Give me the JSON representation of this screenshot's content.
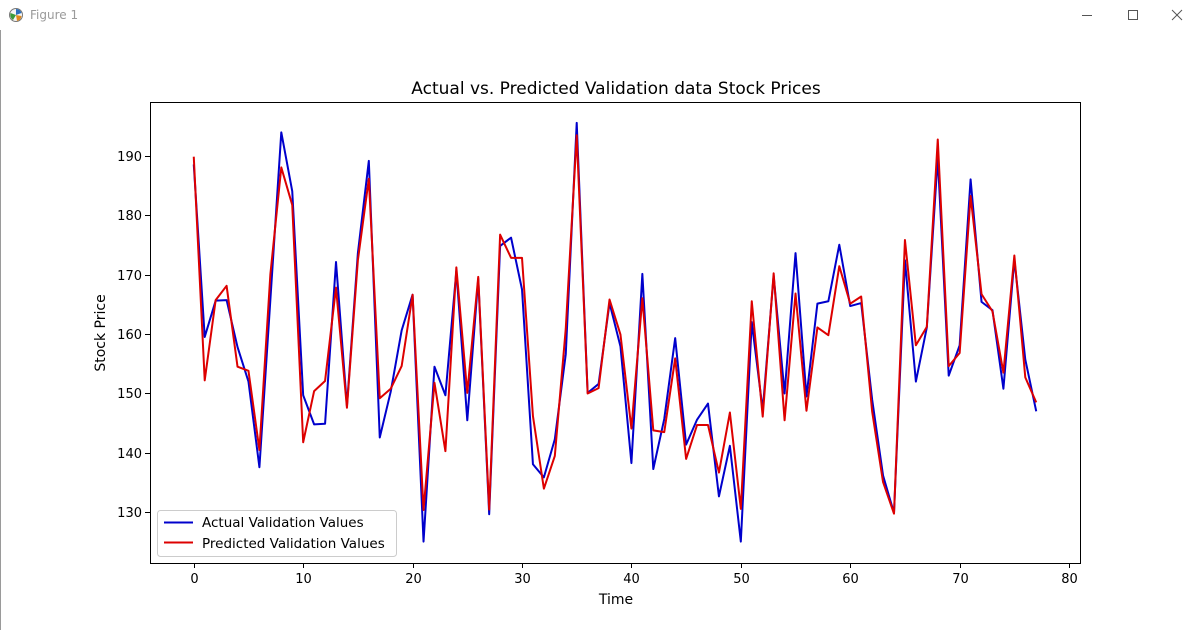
{
  "window": {
    "title": "Figure 1",
    "app_icon": "matplotlib-figure-icon",
    "minimize_icon": "minimize-icon",
    "maximize_icon": "maximize-icon",
    "close_icon": "close-icon"
  },
  "colors": {
    "actual": "#0000cc",
    "predicted": "#dd0000"
  },
  "chart_data": {
    "type": "line",
    "title": "Actual vs. Predicted Validation data Stock Prices",
    "xlabel": "Time",
    "ylabel": "Stock Price",
    "xlim": [
      -4,
      81
    ],
    "ylim": [
      121.5,
      199
    ],
    "xticks": [
      0,
      10,
      20,
      30,
      40,
      50,
      60,
      70,
      80
    ],
    "yticks": [
      130,
      140,
      150,
      160,
      170,
      180,
      190
    ],
    "grid": false,
    "legend_position": "lower-left",
    "x": [
      0,
      1,
      2,
      3,
      4,
      5,
      6,
      7,
      8,
      9,
      10,
      11,
      12,
      13,
      14,
      15,
      16,
      17,
      18,
      19,
      20,
      21,
      22,
      23,
      24,
      25,
      26,
      27,
      28,
      29,
      30,
      31,
      32,
      33,
      34,
      35,
      36,
      37,
      38,
      39,
      40,
      41,
      42,
      43,
      44,
      45,
      46,
      47,
      48,
      49,
      50,
      51,
      52,
      53,
      54,
      55,
      56,
      57,
      58,
      59,
      60,
      61,
      62,
      63,
      64,
      65,
      66,
      67,
      68,
      69,
      70,
      71,
      72,
      73,
      74,
      75,
      76,
      77
    ],
    "series": [
      {
        "name": "Actual Validation Values",
        "values": [
          188.5,
          159.5,
          165.6,
          165.7,
          157.8,
          152.0,
          137.6,
          165.7,
          193.9,
          184.0,
          149.7,
          144.8,
          144.9,
          172.1,
          147.9,
          173.6,
          189.1,
          142.6,
          150.3,
          160.6,
          166.6,
          125.1,
          154.5,
          149.7,
          170.6,
          145.5,
          169.3,
          129.7,
          174.8,
          176.2,
          167.5,
          138.1,
          135.9,
          142.3,
          156.6,
          195.5,
          150.1,
          151.6,
          165.2,
          157.9,
          138.3,
          170.1,
          137.3,
          145.7,
          159.3,
          141.4,
          145.6,
          148.3,
          132.7,
          141.2,
          125.1,
          162.0,
          147.2,
          169.8,
          150.0,
          173.6,
          149.5,
          165.1,
          165.5,
          175.0,
          164.7,
          165.2,
          149.0,
          136.2,
          129.9,
          172.4,
          152.0,
          161.1,
          189.7,
          153.0,
          158.1,
          186.0,
          165.4,
          164.0,
          150.8,
          172.5,
          155.7,
          147.0
        ]
      },
      {
        "name": "Predicted Validation Values",
        "values": [
          189.8,
          152.2,
          165.7,
          168.1,
          154.5,
          153.8,
          140.5,
          170.0,
          188.0,
          181.7,
          141.8,
          150.4,
          152.1,
          167.8,
          147.6,
          172.4,
          186.1,
          149.2,
          150.8,
          154.6,
          166.6,
          130.4,
          151.8,
          140.3,
          171.2,
          150.1,
          169.6,
          130.5,
          176.7,
          172.8,
          172.8,
          146.2,
          134.0,
          139.5,
          160.9,
          193.4,
          150.0,
          150.9,
          165.8,
          159.9,
          144.1,
          166.0,
          143.8,
          143.5,
          155.9,
          139.0,
          144.7,
          144.7,
          136.7,
          146.8,
          130.6,
          165.5,
          146.1,
          170.2,
          145.5,
          166.8,
          147.1,
          161.1,
          159.8,
          171.4,
          165.1,
          166.3,
          147.0,
          135.1,
          129.8,
          175.8,
          158.1,
          161.2,
          192.7,
          154.6,
          156.8,
          183.2,
          166.7,
          163.8,
          153.5,
          173.2,
          152.7,
          148.5
        ]
      }
    ]
  }
}
